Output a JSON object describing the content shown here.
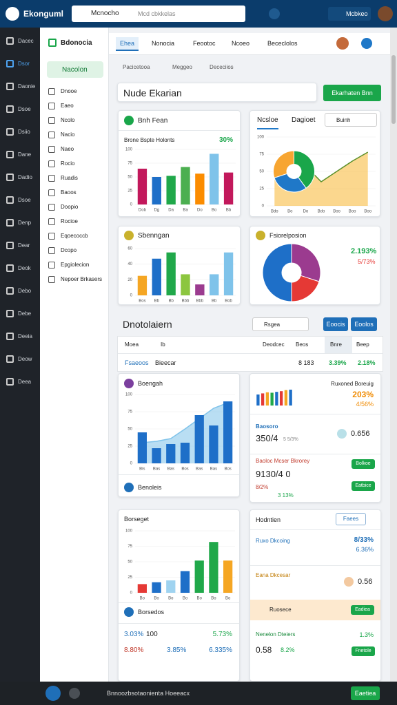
{
  "topbar": {
    "brand": "Ekonguml",
    "search_label": "Mcnocho",
    "search_placeholder": "Mcd cbkkelas",
    "badge": "Mcbkeo"
  },
  "nav": [
    "Dacec",
    "Dsor",
    "Daonie",
    "Dsoe",
    "Dsiio",
    "Dane",
    "Dadio",
    "Dsoe",
    "Denp",
    "Dear",
    "Deok",
    "Debo",
    "Debe",
    "Deeia",
    "Deow",
    "Deea"
  ],
  "subnav": {
    "title": "Bdonocia",
    "active": "Nacolon",
    "items": [
      "Dnooe",
      "Eaeo",
      "Ncolo",
      "Nacio",
      "Naeo",
      "Rocio",
      "Ruadis",
      "Baoos",
      "Doopio",
      "Rocioe",
      "Eqoecoccb",
      "Dcopo",
      "Epgiolecion",
      "Nepoer Brkasers"
    ]
  },
  "tabs": [
    "Ehea",
    "Nonocia",
    "Feootoc",
    "Ncoeo",
    "Bececlolos"
  ],
  "subtabs": [
    "Pacicetooa",
    "Meggeo",
    "Dececiios"
  ],
  "page_title": "Nude Ekarian",
  "primary_button": "Ekarhaten Bnn",
  "sales": {
    "title": "Bnh Fean",
    "subtitle": "Brone Bspte Holonts",
    "highlight": "30%",
    "chart": {
      "type": "bar",
      "categories": [
        "Dob",
        "Dg",
        "Da",
        "Ba",
        "Do",
        "Bo",
        "Bb"
      ],
      "values": [
        65,
        50,
        52,
        68,
        56,
        92,
        58
      ],
      "colors": [
        "#c2185b",
        "#1e6fc8",
        "#20a84a",
        "#4caf50",
        "#fb8c00",
        "#7fc3ea",
        "#c2185b"
      ],
      "ylim": [
        0,
        100
      ],
      "yticks": [
        0,
        25,
        50,
        75,
        100
      ]
    }
  },
  "trend": {
    "tabs": [
      "Ncsloe",
      "Dagioet"
    ],
    "button": "Buinh",
    "chart": {
      "type": "area",
      "categories": [
        "Bdo",
        "Bo",
        "Do",
        "Bdo",
        "Boo",
        "Boo",
        "Boo"
      ],
      "values": [
        40,
        62,
        58,
        35,
        50,
        65,
        78
      ],
      "color": "#f7b731",
      "line_color": "#5a8f2a",
      "ylim": [
        0,
        100
      ],
      "yticks": [
        0,
        25,
        50,
        75,
        100
      ],
      "pie_values": [
        40,
        30,
        30
      ],
      "pie_colors": [
        "#1aa64a",
        "#1f78c8",
        "#f7a531"
      ]
    }
  },
  "segments": {
    "title": "Sbenngan",
    "chart": {
      "type": "bar",
      "categories": [
        "Bos",
        "Bb",
        "Bb",
        "Bbb",
        "Bbb",
        "Bb",
        "Bob"
      ],
      "values": [
        25,
        47,
        55,
        27,
        14,
        27,
        55
      ],
      "colors": [
        "#f5a623",
        "#1e6fc8",
        "#20a84a",
        "#8cc63f",
        "#9b3b8f",
        "#7fc3ea",
        "#7fc3ea"
      ],
      "ylim": [
        0,
        60
      ],
      "yticks": [
        0,
        20,
        40,
        60
      ]
    }
  },
  "portfolio": {
    "title": "Fsiorelposion",
    "stats": [
      "2.193%",
      "5/73%"
    ],
    "chart": {
      "type": "donut",
      "values": [
        30,
        20,
        50
      ],
      "colors": [
        "#9b3b8f",
        "#e53935",
        "#1e6fc8"
      ]
    }
  },
  "section": {
    "title": "Dnotolaiern",
    "dropdown": "Rsgea",
    "buttons": [
      "Eoocis",
      "Eoolos"
    ],
    "columns": [
      "Moea",
      "Ib",
      "Deodcec",
      "Beos",
      "Bnre",
      "Beep"
    ],
    "row": [
      "Fsaeoos",
      "Bieecar",
      "8 183",
      "3.39%",
      "2.18%"
    ]
  },
  "growth": {
    "title": "Boengah",
    "footer": "Benoleis",
    "chart": {
      "type": "combo",
      "categories": [
        "Bis",
        "Bas",
        "Bas",
        "Bos",
        "Bas",
        "Bas",
        "Bos"
      ],
      "values": [
        45,
        22,
        28,
        30,
        70,
        55,
        90
      ],
      "line_values": [
        30,
        32,
        36,
        50,
        65,
        80,
        88
      ],
      "color": "#1e6fc8",
      "line_color": "#7fc3ea",
      "ylim": [
        0,
        100
      ],
      "yticks": [
        0,
        25,
        50,
        75,
        100
      ]
    }
  },
  "highlights": {
    "spark": {
      "type": "bar",
      "values": [
        50,
        55,
        60,
        58,
        62,
        65,
        70,
        72
      ],
      "colors": [
        "#1e6fc8",
        "#e53935",
        "#f5a623",
        "#20a84a",
        "#1e6fc8",
        "#e53935",
        "#f5a623",
        "#1e6fc8"
      ],
      "ylim": [
        0,
        100
      ]
    },
    "label": "Ruxoned Boreuig",
    "stats": [
      "203%",
      "4/56%"
    ],
    "items": [
      {
        "name": "Baosoro",
        "value": "350/4",
        "note": "5 5/3%",
        "aside": "0.656"
      },
      {
        "name": "Baoloc Mcser Bkrorey",
        "value": "9130/4 0",
        "note": "8/2%",
        "aside": "3 13%",
        "buttons": [
          "Bolkoe",
          "Eatbice"
        ]
      }
    ]
  },
  "budget": {
    "title": "Borseget",
    "chart": {
      "type": "bar",
      "categories": [
        "Bo",
        "Bo",
        "Bo",
        "Bo",
        "Bo",
        "Bo",
        "Bo"
      ],
      "values": [
        14,
        17,
        20,
        35,
        52,
        82,
        52
      ],
      "colors": [
        "#e53935",
        "#1e6fc8",
        "#9fd3f0",
        "#1e6fc8",
        "#20a84a",
        "#20a84a",
        "#f5a623"
      ],
      "ylim": [
        0,
        100
      ],
      "yticks": [
        0,
        25,
        50,
        75,
        100
      ]
    },
    "sub_title": "Borsedos",
    "stats": [
      [
        "3.03%",
        "100",
        "5.73%"
      ],
      [
        "8.80%",
        "3.85%",
        "6.335%"
      ]
    ]
  },
  "holdings": {
    "title": "Hodntien",
    "button": "Faees",
    "items": [
      {
        "name": "Ruxo Dkcoing",
        "value": "8/33%",
        "note": "6.36%"
      },
      {
        "name": "Eana Dkcesar",
        "value": "0.56"
      },
      {
        "name": "Ruosece",
        "button": "Eadiea"
      },
      {
        "name": "Nenelon Dteiers",
        "value": "1.3%",
        "note": "0.58",
        "extra": "8.2%",
        "button": "Fnetole"
      }
    ]
  },
  "footer": {
    "text": "Bnnoozbsotaonienta Hoeeacx",
    "button": "Eaetiea"
  }
}
